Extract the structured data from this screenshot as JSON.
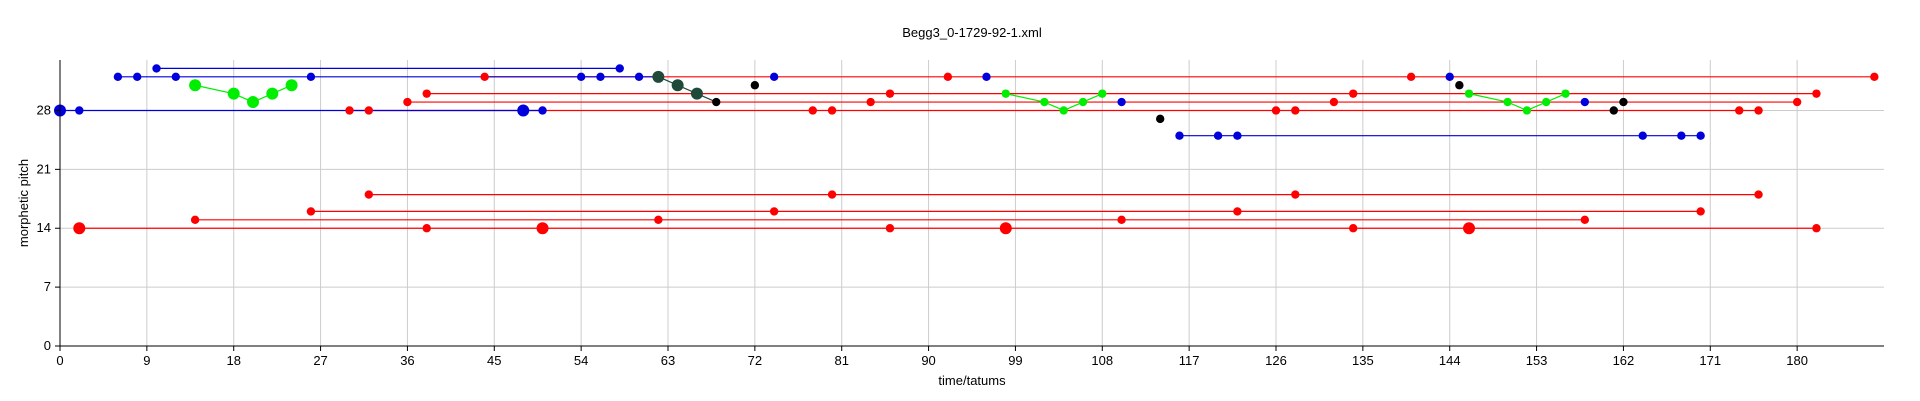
{
  "chart_data": {
    "type": "scatter",
    "title": "Begg3_0-1729-92-1.xml",
    "xlabel": "time/tatums",
    "ylabel": "morphetic pitch",
    "xlim": [
      0,
      189
    ],
    "ylim": [
      0,
      34
    ],
    "xticks": [
      0,
      9,
      18,
      27,
      36,
      45,
      54,
      63,
      72,
      81,
      90,
      99,
      108,
      117,
      126,
      135,
      144,
      153,
      162,
      171,
      180
    ],
    "yticks": [
      0,
      7,
      14,
      21,
      28
    ],
    "grid": true,
    "colors": {
      "red": "#ff0000",
      "blue": "#0000dd",
      "green": "#00ee00",
      "black": "#000000",
      "darkgreen": "#1f4a3a"
    },
    "segments": [
      {
        "color": "red",
        "x1": 2,
        "x2": 182,
        "y": 14
      },
      {
        "color": "red",
        "x1": 14,
        "x2": 158,
        "y": 15
      },
      {
        "color": "red",
        "x1": 26,
        "x2": 170,
        "y": 16
      },
      {
        "color": "red",
        "x1": 32,
        "x2": 176,
        "y": 18
      },
      {
        "color": "red",
        "x1": 30,
        "x2": 176,
        "y": 28
      },
      {
        "color": "red",
        "x1": 36,
        "x2": 180,
        "y": 29
      },
      {
        "color": "red",
        "x1": 38,
        "x2": 182,
        "y": 30
      },
      {
        "color": "red",
        "x1": 44,
        "x2": 188,
        "y": 32
      },
      {
        "color": "blue",
        "x1": 0,
        "x2": 50,
        "y": 28
      },
      {
        "color": "blue",
        "x1": 6,
        "x2": 62,
        "y": 32
      },
      {
        "color": "blue",
        "x1": 10,
        "x2": 58,
        "y": 33
      },
      {
        "color": "blue",
        "x1": 116,
        "x2": 170,
        "y": 25
      },
      {
        "color": "green",
        "x1": 14,
        "x2": 24,
        "y": 31,
        "path": [
          [
            14,
            31
          ],
          [
            18,
            30
          ],
          [
            20,
            29
          ],
          [
            22,
            30
          ],
          [
            24,
            31
          ]
        ]
      },
      {
        "color": "green",
        "x1": 98,
        "x2": 108,
        "y": 30,
        "path": [
          [
            98,
            30
          ],
          [
            102,
            29
          ],
          [
            104,
            28
          ],
          [
            106,
            29
          ],
          [
            108,
            30
          ]
        ]
      },
      {
        "color": "green",
        "x1": 146,
        "x2": 156,
        "y": 30,
        "path": [
          [
            146,
            30
          ],
          [
            150,
            29
          ],
          [
            152,
            28
          ],
          [
            154,
            29
          ],
          [
            156,
            30
          ]
        ]
      },
      {
        "color": "darkgreen",
        "x1": 62,
        "x2": 68,
        "y": 32,
        "path": [
          [
            62,
            32
          ],
          [
            64,
            31
          ],
          [
            66,
            30
          ],
          [
            68,
            29
          ]
        ]
      }
    ],
    "points": [
      {
        "color": "red",
        "x": 2,
        "y": 14,
        "size": "large"
      },
      {
        "color": "red",
        "x": 38,
        "y": 14,
        "size": "small"
      },
      {
        "color": "red",
        "x": 50,
        "y": 14,
        "size": "large"
      },
      {
        "color": "red",
        "x": 62,
        "y": 15,
        "size": "small"
      },
      {
        "color": "red",
        "x": 86,
        "y": 14,
        "size": "small"
      },
      {
        "color": "red",
        "x": 98,
        "y": 14,
        "size": "large"
      },
      {
        "color": "red",
        "x": 110,
        "y": 15,
        "size": "small"
      },
      {
        "color": "red",
        "x": 134,
        "y": 14,
        "size": "small"
      },
      {
        "color": "red",
        "x": 146,
        "y": 14,
        "size": "large"
      },
      {
        "color": "red",
        "x": 182,
        "y": 14,
        "size": "small"
      },
      {
        "color": "red",
        "x": 14,
        "y": 15,
        "size": "small"
      },
      {
        "color": "red",
        "x": 158,
        "y": 15,
        "size": "small"
      },
      {
        "color": "red",
        "x": 26,
        "y": 16,
        "size": "small"
      },
      {
        "color": "red",
        "x": 74,
        "y": 16,
        "size": "small"
      },
      {
        "color": "red",
        "x": 122,
        "y": 16,
        "size": "small"
      },
      {
        "color": "red",
        "x": 170,
        "y": 16,
        "size": "small"
      },
      {
        "color": "red",
        "x": 32,
        "y": 18,
        "size": "small"
      },
      {
        "color": "red",
        "x": 80,
        "y": 18,
        "size": "small"
      },
      {
        "color": "red",
        "x": 128,
        "y": 18,
        "size": "small"
      },
      {
        "color": "red",
        "x": 176,
        "y": 18,
        "size": "small"
      },
      {
        "color": "red",
        "x": 30,
        "y": 28,
        "size": "small"
      },
      {
        "color": "red",
        "x": 32,
        "y": 28,
        "size": "small"
      },
      {
        "color": "red",
        "x": 78,
        "y": 28,
        "size": "small"
      },
      {
        "color": "red",
        "x": 80,
        "y": 28,
        "size": "small"
      },
      {
        "color": "red",
        "x": 126,
        "y": 28,
        "size": "small"
      },
      {
        "color": "red",
        "x": 128,
        "y": 28,
        "size": "small"
      },
      {
        "color": "red",
        "x": 174,
        "y": 28,
        "size": "small"
      },
      {
        "color": "red",
        "x": 176,
        "y": 28,
        "size": "small"
      },
      {
        "color": "red",
        "x": 36,
        "y": 29,
        "size": "small"
      },
      {
        "color": "red",
        "x": 84,
        "y": 29,
        "size": "small"
      },
      {
        "color": "red",
        "x": 132,
        "y": 29,
        "size": "small"
      },
      {
        "color": "red",
        "x": 180,
        "y": 29,
        "size": "small"
      },
      {
        "color": "red",
        "x": 38,
        "y": 30,
        "size": "small"
      },
      {
        "color": "red",
        "x": 86,
        "y": 30,
        "size": "small"
      },
      {
        "color": "red",
        "x": 134,
        "y": 30,
        "size": "small"
      },
      {
        "color": "red",
        "x": 182,
        "y": 30,
        "size": "small"
      },
      {
        "color": "red",
        "x": 44,
        "y": 32,
        "size": "small"
      },
      {
        "color": "red",
        "x": 92,
        "y": 32,
        "size": "small"
      },
      {
        "color": "red",
        "x": 140,
        "y": 32,
        "size": "small"
      },
      {
        "color": "red",
        "x": 188,
        "y": 32,
        "size": "small"
      },
      {
        "color": "blue",
        "x": 0,
        "y": 28,
        "size": "large"
      },
      {
        "color": "blue",
        "x": 2,
        "y": 28,
        "size": "small"
      },
      {
        "color": "blue",
        "x": 48,
        "y": 28,
        "size": "large"
      },
      {
        "color": "blue",
        "x": 50,
        "y": 28,
        "size": "small"
      },
      {
        "color": "blue",
        "x": 6,
        "y": 32,
        "size": "small"
      },
      {
        "color": "blue",
        "x": 8,
        "y": 32,
        "size": "small"
      },
      {
        "color": "blue",
        "x": 12,
        "y": 32,
        "size": "small"
      },
      {
        "color": "blue",
        "x": 26,
        "y": 32,
        "size": "small"
      },
      {
        "color": "blue",
        "x": 54,
        "y": 32,
        "size": "small"
      },
      {
        "color": "blue",
        "x": 56,
        "y": 32,
        "size": "small"
      },
      {
        "color": "blue",
        "x": 60,
        "y": 32,
        "size": "small"
      },
      {
        "color": "blue",
        "x": 74,
        "y": 32,
        "size": "small"
      },
      {
        "color": "blue",
        "x": 96,
        "y": 32,
        "size": "small"
      },
      {
        "color": "blue",
        "x": 144,
        "y": 32,
        "size": "small"
      },
      {
        "color": "blue",
        "x": 10,
        "y": 33,
        "size": "small"
      },
      {
        "color": "blue",
        "x": 58,
        "y": 33,
        "size": "small"
      },
      {
        "color": "blue",
        "x": 110,
        "y": 29,
        "size": "small"
      },
      {
        "color": "blue",
        "x": 158,
        "y": 29,
        "size": "small"
      },
      {
        "color": "blue",
        "x": 116,
        "y": 25,
        "size": "small"
      },
      {
        "color": "blue",
        "x": 120,
        "y": 25,
        "size": "small"
      },
      {
        "color": "blue",
        "x": 122,
        "y": 25,
        "size": "small"
      },
      {
        "color": "blue",
        "x": 164,
        "y": 25,
        "size": "small"
      },
      {
        "color": "blue",
        "x": 168,
        "y": 25,
        "size": "small"
      },
      {
        "color": "blue",
        "x": 170,
        "y": 25,
        "size": "small"
      },
      {
        "color": "green",
        "x": 14,
        "y": 31,
        "size": "large"
      },
      {
        "color": "green",
        "x": 18,
        "y": 30,
        "size": "large"
      },
      {
        "color": "green",
        "x": 20,
        "y": 29,
        "size": "large"
      },
      {
        "color": "green",
        "x": 22,
        "y": 30,
        "size": "large"
      },
      {
        "color": "green",
        "x": 24,
        "y": 31,
        "size": "large"
      },
      {
        "color": "green",
        "x": 98,
        "y": 30,
        "size": "small"
      },
      {
        "color": "green",
        "x": 102,
        "y": 29,
        "size": "small"
      },
      {
        "color": "green",
        "x": 104,
        "y": 28,
        "size": "small"
      },
      {
        "color": "green",
        "x": 106,
        "y": 29,
        "size": "small"
      },
      {
        "color": "green",
        "x": 108,
        "y": 30,
        "size": "small"
      },
      {
        "color": "green",
        "x": 146,
        "y": 30,
        "size": "small"
      },
      {
        "color": "green",
        "x": 150,
        "y": 29,
        "size": "small"
      },
      {
        "color": "green",
        "x": 152,
        "y": 28,
        "size": "small"
      },
      {
        "color": "green",
        "x": 154,
        "y": 29,
        "size": "small"
      },
      {
        "color": "green",
        "x": 156,
        "y": 30,
        "size": "small"
      },
      {
        "color": "darkgreen",
        "x": 62,
        "y": 32,
        "size": "large"
      },
      {
        "color": "darkgreen",
        "x": 64,
        "y": 31,
        "size": "large"
      },
      {
        "color": "darkgreen",
        "x": 66,
        "y": 30,
        "size": "large"
      },
      {
        "color": "black",
        "x": 68,
        "y": 29,
        "size": "small"
      },
      {
        "color": "black",
        "x": 72,
        "y": 31,
        "size": "small"
      },
      {
        "color": "black",
        "x": 114,
        "y": 27,
        "size": "small"
      },
      {
        "color": "black",
        "x": 145,
        "y": 31,
        "size": "small"
      },
      {
        "color": "black",
        "x": 161,
        "y": 28,
        "size": "small"
      },
      {
        "color": "black",
        "x": 162,
        "y": 29,
        "size": "small"
      }
    ]
  }
}
